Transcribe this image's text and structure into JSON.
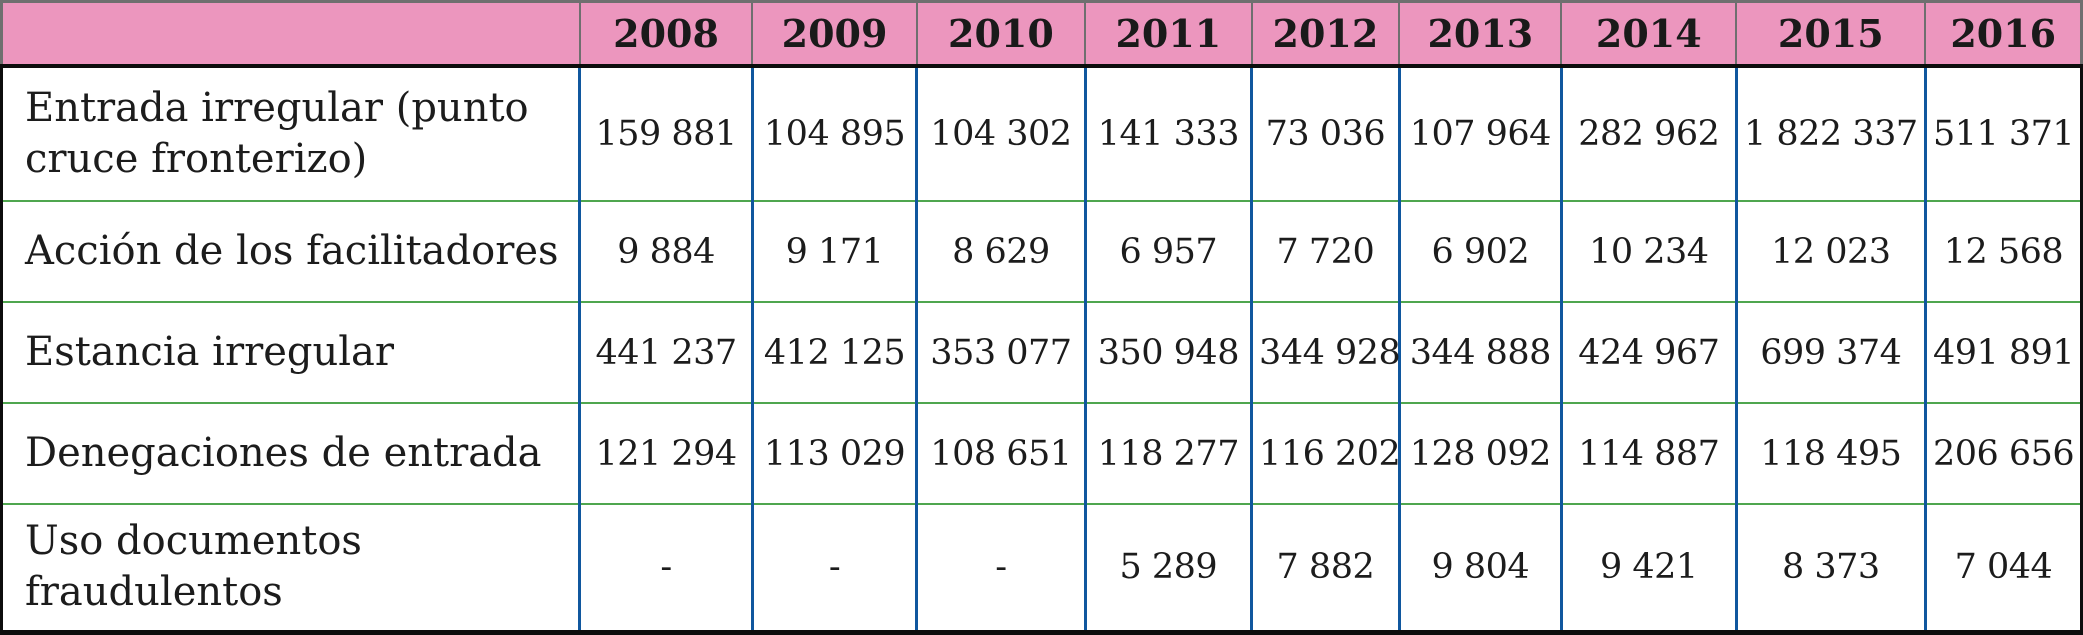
{
  "table": {
    "header": {
      "corner": "",
      "years": [
        "2008",
        "2009",
        "2010",
        "2011",
        "2012",
        "2013",
        "2014",
        "2015",
        "2016"
      ]
    },
    "rows": [
      {
        "label": "Entrada irregular (punto\ncruce fronterizo)",
        "values": [
          "159 881",
          "104 895",
          "104 302",
          "141 333",
          "73 036",
          "107 964",
          "282 962",
          "1 822 337",
          "511 371"
        ]
      },
      {
        "label": "Acción de los facilitadores",
        "values": [
          "9 884",
          "9 171",
          "8 629",
          "6 957",
          "7 720",
          "6 902",
          "10 234",
          "12 023",
          "12 568"
        ]
      },
      {
        "label": "Estancia irregular",
        "values": [
          "441 237",
          "412 125",
          "353 077",
          "350 948",
          "344 928",
          "344 888",
          "424 967",
          "699 374",
          "491 891"
        ]
      },
      {
        "label": "Denegaciones de entrada",
        "values": [
          "121 294",
          "113 029",
          "108 651",
          "118 277",
          "116 202",
          "128 092",
          "114 887",
          "118 495",
          "206 656"
        ]
      },
      {
        "label": "Uso documentos\nfraudulentos",
        "values": [
          "-",
          "-",
          "-",
          "5 289",
          "7 882",
          "9 804",
          "9 421",
          "8 373",
          "7 044"
        ]
      }
    ]
  },
  "colors": {
    "header_bg": "#EC96BE",
    "header_border": "#6F6F6F",
    "vertical_border": "#10579E",
    "horizontal_border": "#4FA64F",
    "outer_border": "#0D0D0D",
    "text": "#1C1C1C"
  },
  "chart_data": {
    "type": "table",
    "categories": [
      "2008",
      "2009",
      "2010",
      "2011",
      "2012",
      "2013",
      "2014",
      "2015",
      "2016"
    ],
    "series": [
      {
        "name": "Entrada irregular (punto cruce fronterizo)",
        "values": [
          159881,
          104895,
          104302,
          141333,
          73036,
          107964,
          282962,
          1822337,
          511371
        ]
      },
      {
        "name": "Acción de los facilitadores",
        "values": [
          9884,
          9171,
          8629,
          6957,
          7720,
          6902,
          10234,
          12023,
          12568
        ]
      },
      {
        "name": "Estancia irregular",
        "values": [
          441237,
          412125,
          353077,
          350948,
          344928,
          344888,
          424967,
          699374,
          491891
        ]
      },
      {
        "name": "Denegaciones de entrada",
        "values": [
          121294,
          113029,
          108651,
          118277,
          116202,
          128092,
          114887,
          118495,
          206656
        ]
      },
      {
        "name": "Uso documentos fraudulentos",
        "values": [
          null,
          null,
          null,
          5289,
          7882,
          9804,
          9421,
          8373,
          7044
        ]
      }
    ],
    "title": "",
    "legend": false,
    "notes": "Dash (-) shown for 2008-2010 in last row"
  }
}
